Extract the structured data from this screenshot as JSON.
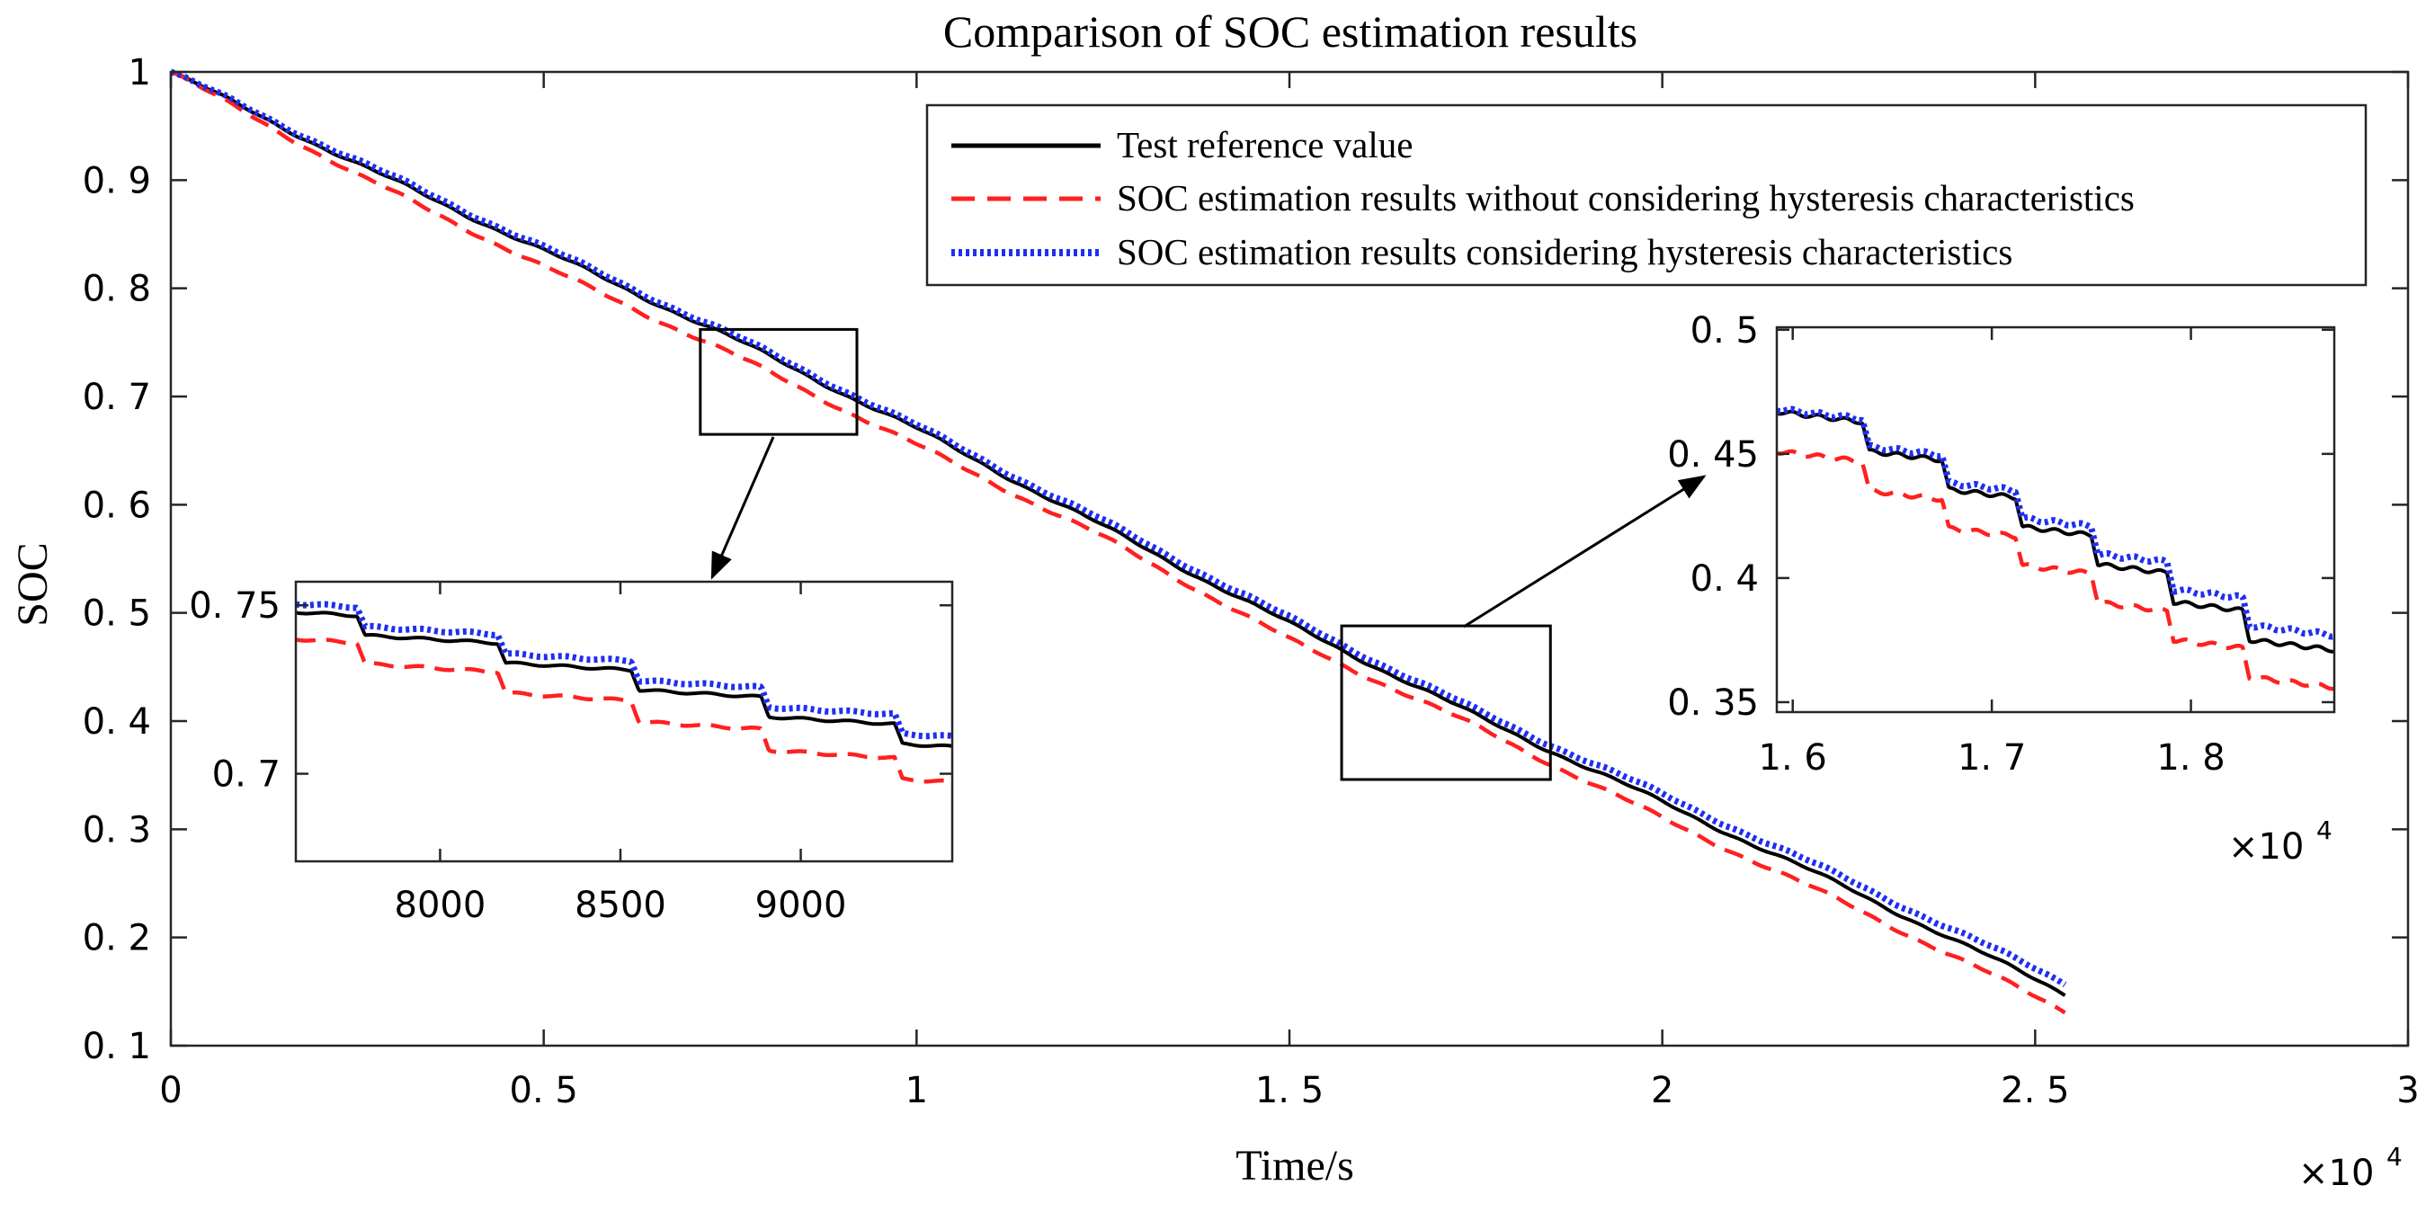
{
  "chart_data": {
    "type": "line",
    "title": "Comparison of SOC estimation results",
    "xlabel": "Time/s",
    "ylabel": "SOC",
    "x_exponent_label": "×10",
    "x_exponent_power": "4",
    "xlim": [
      0,
      30000
    ],
    "ylim": [
      0.1,
      1.0
    ],
    "grid": false,
    "legend_position": "top-right",
    "x_tick_values": [
      0,
      5000,
      10000,
      15000,
      20000,
      25000,
      30000
    ],
    "x_tick_labels": [
      "0",
      "0. 5",
      "1",
      "1. 5",
      "2",
      "2. 5",
      "3"
    ],
    "y_tick_values": [
      0.1,
      0.2,
      0.3,
      0.4,
      0.5,
      0.6,
      0.7,
      0.8,
      0.9,
      1.0
    ],
    "y_tick_labels": [
      "0. 1",
      "0. 2",
      "0. 3",
      "0. 4",
      "0. 5",
      "0. 6",
      "0. 7",
      "0. 8",
      "0. 9",
      "1"
    ],
    "series": [
      {
        "name": "Test reference value",
        "color": "#000000",
        "style": "solid",
        "x": [
          0,
          2500,
          5000,
          7500,
          10000,
          12500,
          15000,
          17500,
          20000,
          22500,
          25400
        ],
        "y": [
          1.0,
          0.915,
          0.835,
          0.755,
          0.67,
          0.58,
          0.49,
          0.405,
          0.325,
          0.245,
          0.148
        ]
      },
      {
        "name": "SOC estimation results without considering hysteresis characteristics",
        "color": "#ff2020",
        "style": "dashed",
        "x": [
          0,
          2500,
          5000,
          7500,
          10000,
          12500,
          15000,
          17500,
          20000,
          22500,
          25400
        ],
        "y": [
          1.0,
          0.905,
          0.82,
          0.74,
          0.655,
          0.57,
          0.475,
          0.395,
          0.31,
          0.23,
          0.132
        ]
      },
      {
        "name": "SOC estimation results considering hysteresis characteristics",
        "color": "#1f2ff0",
        "style": "dotted",
        "x": [
          0,
          2500,
          5000,
          7500,
          10000,
          12500,
          15000,
          17500,
          20000,
          22500,
          25400
        ],
        "y": [
          1.0,
          0.918,
          0.838,
          0.758,
          0.673,
          0.585,
          0.495,
          0.41,
          0.332,
          0.253,
          0.158
        ]
      }
    ],
    "zoom_regions": [
      {
        "xlim": [
          7100,
          9200
        ],
        "ylim": [
          0.665,
          0.762
        ]
      },
      {
        "xlim": [
          15700,
          18500
        ],
        "ylim": [
          0.346,
          0.488
        ]
      }
    ],
    "insets": [
      {
        "xlim": [
          7600,
          9420
        ],
        "ylim": [
          0.674,
          0.757
        ],
        "x_tick_values": [
          8000,
          8500,
          9000
        ],
        "x_tick_labels": [
          "8000",
          "8500",
          "9000"
        ],
        "y_tick_values": [
          0.7,
          0.75
        ],
        "y_tick_labels": [
          "0. 7",
          "0. 75"
        ],
        "step_times": [
          7770,
          8160,
          8530,
          8890,
          9260
        ],
        "series": [
          {
            "x": [
              7600,
              9420
            ],
            "y": [
              0.748,
              0.708
            ]
          },
          {
            "x": [
              7600,
              9420
            ],
            "y": [
              0.74,
              0.6975
            ]
          },
          {
            "x": [
              7600,
              9420
            ],
            "y": [
              0.7505,
              0.711
            ]
          }
        ]
      },
      {
        "xlim": [
          15920,
          18720
        ],
        "ylim": [
          0.346,
          0.501
        ],
        "x_tick_values": [
          16000,
          17000,
          18000
        ],
        "x_tick_labels": [
          "1. 6",
          "1. 7",
          "1. 8"
        ],
        "y_tick_values": [
          0.35,
          0.4,
          0.45,
          0.5
        ],
        "y_tick_labels": [
          "0. 35",
          "0. 4",
          "0. 45",
          "0. 5"
        ],
        "x_exponent_label": "×10",
        "x_exponent_power": "4",
        "step_times": [
          16350,
          16750,
          17120,
          17500,
          17880,
          18260
        ],
        "series": [
          {
            "x": [
              15920,
              18720
            ],
            "y": [
              0.467,
              0.371
            ]
          },
          {
            "x": [
              15920,
              18720
            ],
            "y": [
              0.451,
              0.356
            ]
          },
          {
            "x": [
              15920,
              18720
            ],
            "y": [
              0.468,
              0.377
            ]
          }
        ]
      }
    ]
  }
}
